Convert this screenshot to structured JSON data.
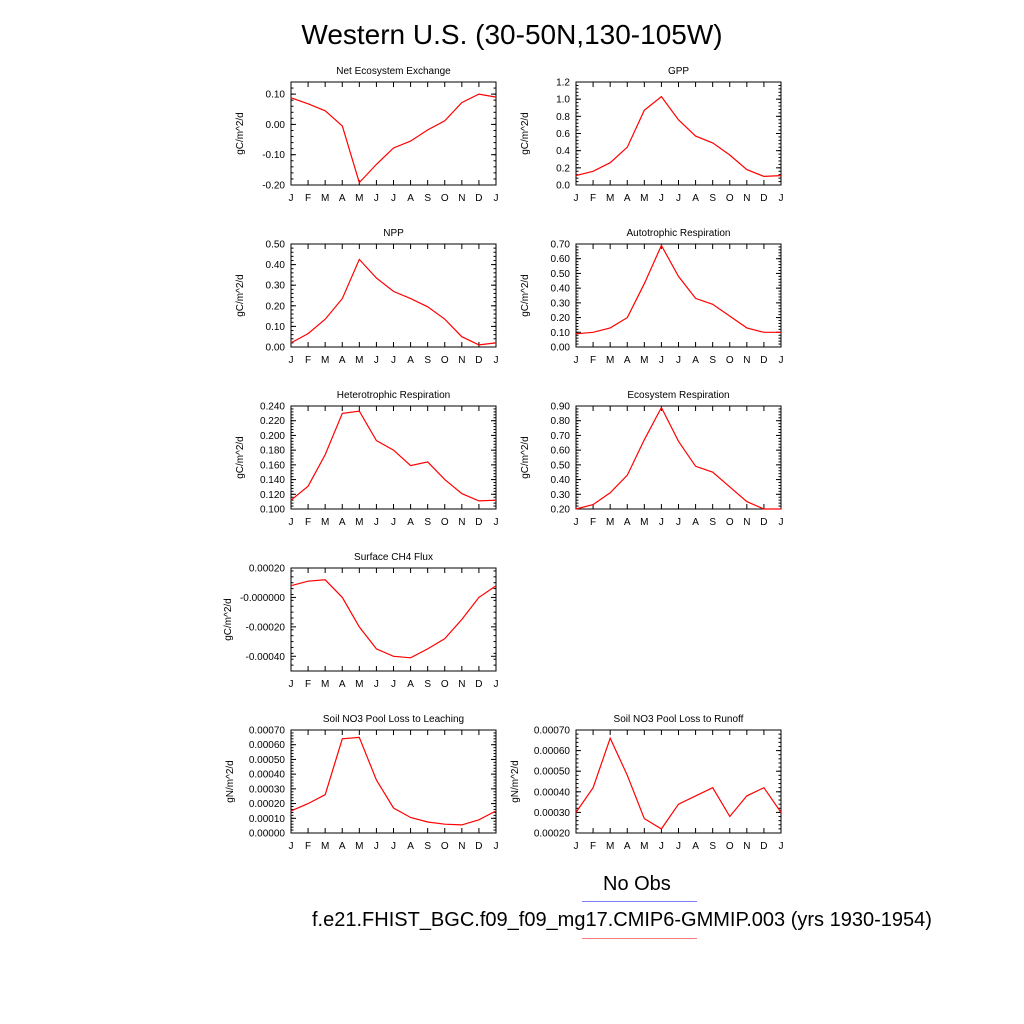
{
  "title": "Western U.S. (30-50N,130-105W)",
  "legend": {
    "obs_label": "No Obs",
    "obs_color": "#7d7dff",
    "model_label": "f.e21.FHIST_BGC.f09_f09_mg17.CMIP6-GMMIP.003 (yrs 1930-1954)",
    "model_color": "#ff7a7a"
  },
  "colors": {
    "line": "#ff0000",
    "axis": "#000000"
  },
  "chart_data": [
    {
      "type": "line",
      "title": "Net Ecosystem Exchange",
      "ylabel": "gC/m^2/d",
      "categories": [
        "J",
        "F",
        "M",
        "A",
        "M",
        "J",
        "J",
        "A",
        "S",
        "O",
        "N",
        "D",
        "J"
      ],
      "ylim": [
        -0.2,
        0.14
      ],
      "yticks": [
        -0.2,
        -0.1,
        0.0,
        0.1
      ],
      "ytick_labels": [
        "-0.20",
        "-0.10",
        "0.00",
        "0.10"
      ],
      "values": [
        0.088,
        0.068,
        0.045,
        -0.005,
        -0.192,
        -0.132,
        -0.078,
        -0.055,
        -0.018,
        0.012,
        0.072,
        0.1,
        0.09
      ]
    },
    {
      "type": "line",
      "title": "GPP",
      "ylabel": "gC/m^2/d",
      "categories": [
        "J",
        "F",
        "M",
        "A",
        "M",
        "J",
        "J",
        "A",
        "S",
        "O",
        "N",
        "D",
        "J"
      ],
      "ylim": [
        0.0,
        1.2
      ],
      "yticks": [
        0.0,
        0.2,
        0.4,
        0.6,
        0.8,
        1.0,
        1.2
      ],
      "ytick_labels": [
        "0.0",
        "0.2",
        "0.4",
        "0.6",
        "0.8",
        "1.0",
        "1.2"
      ],
      "values": [
        0.11,
        0.16,
        0.26,
        0.44,
        0.87,
        1.03,
        0.76,
        0.57,
        0.49,
        0.35,
        0.18,
        0.1,
        0.11
      ]
    },
    {
      "type": "line",
      "title": "NPP",
      "ylabel": "gC/m^2/d",
      "categories": [
        "J",
        "F",
        "M",
        "A",
        "M",
        "J",
        "J",
        "A",
        "S",
        "O",
        "N",
        "D",
        "J"
      ],
      "ylim": [
        0.0,
        0.5
      ],
      "yticks": [
        0.0,
        0.1,
        0.2,
        0.3,
        0.4,
        0.5
      ],
      "ytick_labels": [
        "0.00",
        "0.10",
        "0.20",
        "0.30",
        "0.40",
        "0.50"
      ],
      "values": [
        0.02,
        0.065,
        0.135,
        0.235,
        0.425,
        0.335,
        0.27,
        0.235,
        0.195,
        0.135,
        0.05,
        0.01,
        0.02
      ]
    },
    {
      "type": "line",
      "title": "Autotrophic Respiration",
      "ylabel": "gC/m^2/d",
      "categories": [
        "J",
        "F",
        "M",
        "A",
        "M",
        "J",
        "J",
        "A",
        "S",
        "O",
        "N",
        "D",
        "J"
      ],
      "ylim": [
        0.0,
        0.7
      ],
      "yticks": [
        0.0,
        0.1,
        0.2,
        0.3,
        0.4,
        0.5,
        0.6,
        0.7
      ],
      "ytick_labels": [
        "0.00",
        "0.10",
        "0.20",
        "0.30",
        "0.40",
        "0.50",
        "0.60",
        "0.70"
      ],
      "values": [
        0.09,
        0.1,
        0.13,
        0.2,
        0.43,
        0.69,
        0.48,
        0.33,
        0.29,
        0.21,
        0.13,
        0.1,
        0.1
      ]
    },
    {
      "type": "line",
      "title": "Heterotrophic Respiration",
      "ylabel": "gC/m^2/d",
      "categories": [
        "J",
        "F",
        "M",
        "A",
        "M",
        "J",
        "J",
        "A",
        "S",
        "O",
        "N",
        "D",
        "J"
      ],
      "ylim": [
        0.1,
        0.24
      ],
      "yticks": [
        0.1,
        0.12,
        0.14,
        0.16,
        0.18,
        0.2,
        0.22,
        0.24
      ],
      "ytick_labels": [
        "0.100",
        "0.120",
        "0.140",
        "0.160",
        "0.180",
        "0.200",
        "0.220",
        "0.240"
      ],
      "values": [
        0.112,
        0.131,
        0.174,
        0.23,
        0.233,
        0.193,
        0.18,
        0.159,
        0.164,
        0.14,
        0.121,
        0.111,
        0.112
      ]
    },
    {
      "type": "line",
      "title": "Ecosystem Respiration",
      "ylabel": "gC/m^2/d",
      "categories": [
        "J",
        "F",
        "M",
        "A",
        "M",
        "J",
        "J",
        "A",
        "S",
        "O",
        "N",
        "D",
        "J"
      ],
      "ylim": [
        0.2,
        0.9
      ],
      "yticks": [
        0.2,
        0.3,
        0.4,
        0.5,
        0.6,
        0.7,
        0.8,
        0.9
      ],
      "ytick_labels": [
        "0.20",
        "0.30",
        "0.40",
        "0.50",
        "0.60",
        "0.70",
        "0.80",
        "0.90"
      ],
      "values": [
        0.2,
        0.23,
        0.31,
        0.43,
        0.67,
        0.89,
        0.66,
        0.49,
        0.45,
        0.35,
        0.25,
        0.2,
        0.2
      ]
    },
    {
      "type": "line",
      "title": "Surface CH4 Flux",
      "ylabel": "gC/m^2/d",
      "categories": [
        "J",
        "F",
        "M",
        "A",
        "M",
        "J",
        "J",
        "A",
        "S",
        "O",
        "N",
        "D",
        "J"
      ],
      "ylim": [
        -0.0005,
        0.0002
      ],
      "yticks": [
        -0.0004,
        -0.0002,
        0.0,
        0.0002
      ],
      "ytick_labels": [
        "-0.00040",
        "-0.00020",
        "-0.000000",
        "0.00020"
      ],
      "values": [
        8e-05,
        0.00011,
        0.00012,
        0.0,
        -0.0002,
        -0.00035,
        -0.0004,
        -0.00041,
        -0.00035,
        -0.00028,
        -0.00015,
        0.0,
        8e-05
      ]
    },
    {
      "type": "line",
      "title": "Soil NO3 Pool Loss to Leaching",
      "ylabel": "gN/m^2/d",
      "categories": [
        "J",
        "F",
        "M",
        "A",
        "M",
        "J",
        "J",
        "A",
        "S",
        "O",
        "N",
        "D",
        "J"
      ],
      "ylim": [
        0.0,
        0.0007
      ],
      "yticks": [
        0.0,
        0.0001,
        0.0002,
        0.0003,
        0.0004,
        0.0005,
        0.0006,
        0.0007
      ],
      "ytick_labels": [
        "0.00000",
        "0.00010",
        "0.00020",
        "0.00030",
        "0.00040",
        "0.00050",
        "0.00060",
        "0.00070"
      ],
      "values": [
        0.00015,
        0.0002,
        0.00026,
        0.00064,
        0.00065,
        0.00036,
        0.00017,
        0.000105,
        7.5e-05,
        6e-05,
        5.5e-05,
        9e-05,
        0.00015
      ]
    },
    {
      "type": "line",
      "title": "Soil NO3 Pool Loss to Runoff",
      "ylabel": "gN/m^2/d",
      "categories": [
        "J",
        "F",
        "M",
        "A",
        "M",
        "J",
        "J",
        "A",
        "S",
        "O",
        "N",
        "D",
        "J"
      ],
      "ylim": [
        0.0002,
        0.0007
      ],
      "yticks": [
        0.0002,
        0.0003,
        0.0004,
        0.0005,
        0.0006,
        0.0007
      ],
      "ytick_labels": [
        "0.00020",
        "0.00030",
        "0.00040",
        "0.00050",
        "0.00060",
        "0.00070"
      ],
      "values": [
        0.0003,
        0.00042,
        0.00066,
        0.00048,
        0.00027,
        0.00022,
        0.00034,
        0.00038,
        0.00042,
        0.00028,
        0.00038,
        0.00042,
        0.0003
      ]
    }
  ]
}
